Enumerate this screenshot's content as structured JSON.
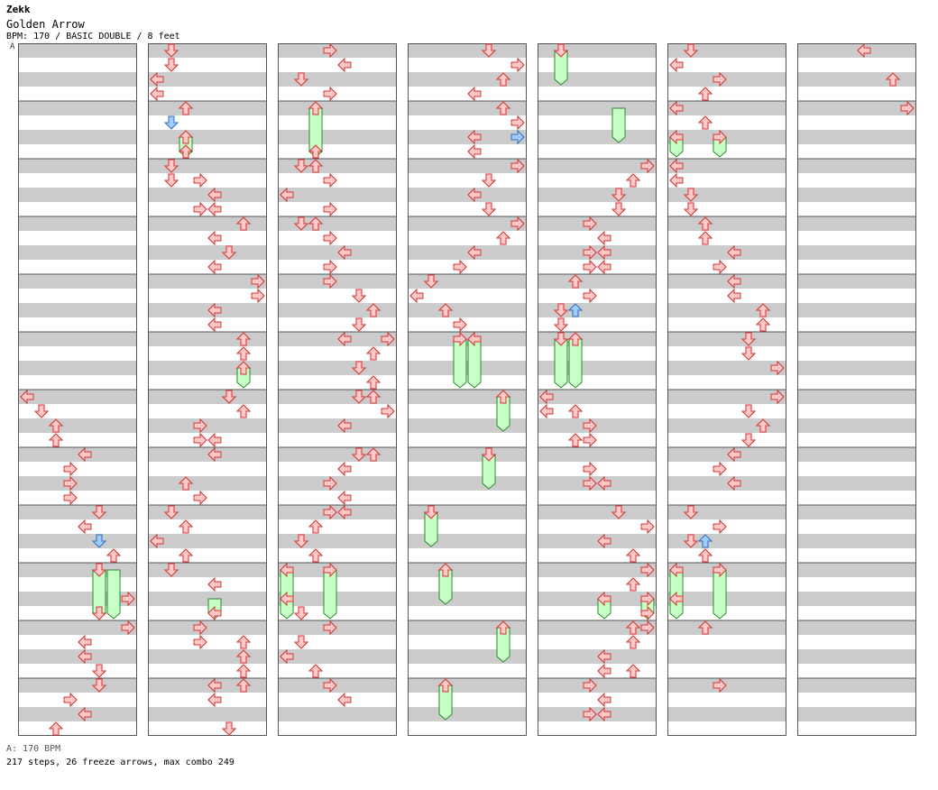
{
  "song": {
    "artist": "Zekk",
    "title": "Golden Arrow",
    "info": "BPM: 170 / BASIC DOUBLE / 8 feet"
  },
  "marker": "A",
  "legend": "A: 170 BPM",
  "stats": "217 steps, 26 freeze arrows, max combo 249",
  "colors": {
    "stripe": "#cbcbcb",
    "border": "#555555",
    "arrow_fill": "#ffc8c8",
    "arrow_stroke": "#d43030",
    "blue_fill": "#9ccbff",
    "blue_stroke": "#2f6fc0",
    "freeze_fill": "#c8ffc8",
    "freeze_stroke": "#2a8a2a"
  },
  "chart_data": {
    "type": "table",
    "beats_per_measure": 4,
    "measures_per_column": 12,
    "lane_directions": [
      "left",
      "down",
      "up",
      "right",
      "left",
      "down",
      "up",
      "right"
    ],
    "columns": [
      {
        "notes": [
          [
            24,
            0
          ],
          [
            25,
            1
          ],
          [
            26,
            2
          ],
          [
            27,
            2
          ],
          [
            28,
            4
          ],
          [
            29,
            3
          ],
          [
            30,
            3
          ],
          [
            31,
            3
          ],
          [
            32,
            5
          ],
          [
            33,
            4
          ],
          [
            34,
            5,
            "b"
          ],
          [
            35,
            6
          ],
          [
            36,
            5
          ],
          [
            38,
            7
          ],
          [
            39,
            5
          ],
          [
            40,
            7
          ],
          [
            41,
            4
          ],
          [
            42,
            4
          ],
          [
            43,
            5
          ],
          [
            44,
            5
          ],
          [
            45,
            3
          ],
          [
            46,
            4
          ],
          [
            47,
            2
          ]
        ],
        "freezes": [
          [
            36,
            5,
            39
          ],
          [
            36,
            6,
            39
          ]
        ]
      },
      {
        "notes": [
          [
            0,
            1
          ],
          [
            1,
            1
          ],
          [
            2,
            0
          ],
          [
            3,
            0
          ],
          [
            4,
            2
          ],
          [
            5,
            1,
            "b"
          ],
          [
            6,
            2
          ],
          [
            7,
            2
          ],
          [
            8,
            1
          ],
          [
            9,
            1
          ],
          [
            9,
            3
          ],
          [
            10,
            4
          ],
          [
            11,
            4
          ],
          [
            11,
            3
          ],
          [
            12,
            6
          ],
          [
            13,
            4
          ],
          [
            14,
            5
          ],
          [
            15,
            4
          ],
          [
            16,
            7
          ],
          [
            17,
            7
          ],
          [
            18,
            4
          ],
          [
            19,
            4
          ],
          [
            20,
            6
          ],
          [
            21,
            6
          ],
          [
            22,
            6
          ],
          [
            24,
            5
          ],
          [
            24,
            5
          ],
          [
            25,
            6
          ],
          [
            26,
            3
          ],
          [
            27,
            3
          ],
          [
            27,
            4
          ],
          [
            28,
            4
          ],
          [
            30,
            2
          ],
          [
            31,
            3
          ],
          [
            32,
            1
          ],
          [
            33,
            2
          ],
          [
            34,
            0
          ],
          [
            35,
            2
          ],
          [
            36,
            1
          ],
          [
            37,
            4
          ],
          [
            39,
            4
          ],
          [
            40,
            3
          ],
          [
            41,
            3
          ],
          [
            41,
            6
          ],
          [
            42,
            6
          ],
          [
            43,
            6
          ],
          [
            44,
            4
          ],
          [
            44,
            6
          ],
          [
            45,
            4
          ],
          [
            47,
            5
          ]
        ],
        "freezes": [
          [
            6,
            2,
            7
          ],
          [
            22,
            6,
            23
          ],
          [
            38,
            4,
            39
          ]
        ]
      },
      {
        "notes": [
          [
            0,
            3
          ],
          [
            1,
            4
          ],
          [
            2,
            1
          ],
          [
            3,
            3
          ],
          [
            4,
            2
          ],
          [
            7,
            2
          ],
          [
            8,
            1
          ],
          [
            8,
            2
          ],
          [
            9,
            3
          ],
          [
            10,
            0
          ],
          [
            11,
            3
          ],
          [
            12,
            1
          ],
          [
            12,
            2
          ],
          [
            13,
            3
          ],
          [
            14,
            4
          ],
          [
            15,
            3
          ],
          [
            16,
            3
          ],
          [
            17,
            5
          ],
          [
            18,
            6
          ],
          [
            19,
            5
          ],
          [
            20,
            4
          ],
          [
            20,
            7
          ],
          [
            21,
            6
          ],
          [
            22,
            5
          ],
          [
            23,
            6
          ],
          [
            24,
            5
          ],
          [
            24,
            6
          ],
          [
            25,
            7
          ],
          [
            26,
            4
          ],
          [
            28,
            5
          ],
          [
            28,
            6
          ],
          [
            29,
            4
          ],
          [
            30,
            3
          ],
          [
            31,
            4
          ],
          [
            32,
            4
          ],
          [
            32,
            3
          ],
          [
            33,
            2
          ],
          [
            34,
            1
          ],
          [
            35,
            2
          ],
          [
            36,
            0
          ],
          [
            36,
            3
          ],
          [
            38,
            0
          ],
          [
            39,
            1
          ],
          [
            40,
            3
          ],
          [
            41,
            1
          ],
          [
            42,
            0
          ],
          [
            43,
            2
          ],
          [
            44,
            3
          ],
          [
            45,
            4
          ]
        ],
        "freezes": [
          [
            4,
            2,
            7
          ],
          [
            36,
            0,
            39
          ],
          [
            36,
            3,
            39
          ]
        ]
      },
      {
        "notes": [
          [
            0,
            5
          ],
          [
            1,
            7
          ],
          [
            2,
            6
          ],
          [
            3,
            4
          ],
          [
            4,
            6
          ],
          [
            5,
            7
          ],
          [
            6,
            4
          ],
          [
            6,
            7,
            "b"
          ],
          [
            7,
            4
          ],
          [
            8,
            7
          ],
          [
            9,
            5
          ],
          [
            10,
            4
          ],
          [
            11,
            5
          ],
          [
            12,
            7
          ],
          [
            13,
            6
          ],
          [
            14,
            4
          ],
          [
            15,
            3
          ],
          [
            16,
            1
          ],
          [
            17,
            0
          ],
          [
            18,
            2
          ],
          [
            19,
            3
          ],
          [
            20,
            3
          ],
          [
            20,
            4
          ],
          [
            24,
            6
          ],
          [
            28,
            5
          ],
          [
            32,
            1
          ],
          [
            36,
            2
          ],
          [
            40,
            6
          ],
          [
            44,
            2
          ]
        ],
        "freezes": [
          [
            20,
            3,
            23
          ],
          [
            20,
            4,
            23
          ],
          [
            24,
            6,
            26
          ],
          [
            28,
            5,
            30
          ],
          [
            32,
            1,
            34
          ],
          [
            36,
            2,
            38
          ],
          [
            40,
            6,
            42
          ],
          [
            44,
            2,
            46
          ]
        ]
      },
      {
        "notes": [
          [
            0,
            1
          ],
          [
            8,
            7
          ],
          [
            9,
            6
          ],
          [
            10,
            5
          ],
          [
            11,
            5
          ],
          [
            12,
            3
          ],
          [
            13,
            4
          ],
          [
            14,
            3
          ],
          [
            14,
            4
          ],
          [
            15,
            3
          ],
          [
            15,
            4
          ],
          [
            16,
            2
          ],
          [
            17,
            3
          ],
          [
            18,
            1
          ],
          [
            18,
            2,
            "b"
          ],
          [
            19,
            1
          ],
          [
            20,
            1
          ],
          [
            20,
            2
          ],
          [
            24,
            0
          ],
          [
            25,
            0
          ],
          [
            25,
            2
          ],
          [
            26,
            3
          ],
          [
            27,
            2
          ],
          [
            27,
            3
          ],
          [
            29,
            3
          ],
          [
            30,
            3
          ],
          [
            30,
            4
          ],
          [
            32,
            5
          ],
          [
            33,
            7
          ],
          [
            34,
            4
          ],
          [
            35,
            6
          ],
          [
            36,
            7
          ],
          [
            37,
            6
          ],
          [
            38,
            4
          ],
          [
            38,
            7
          ],
          [
            39,
            7
          ],
          [
            40,
            6
          ],
          [
            40,
            7
          ],
          [
            41,
            6
          ],
          [
            42,
            4
          ],
          [
            43,
            4
          ],
          [
            43,
            6
          ],
          [
            44,
            3
          ],
          [
            45,
            4
          ],
          [
            46,
            3
          ],
          [
            46,
            4
          ]
        ],
        "freezes": [
          [
            0,
            1,
            2
          ],
          [
            4,
            5,
            6
          ],
          [
            20,
            1,
            23
          ],
          [
            20,
            2,
            23
          ],
          [
            38,
            4,
            39
          ],
          [
            38,
            7,
            39
          ]
        ]
      },
      {
        "notes": [
          [
            0,
            1
          ],
          [
            1,
            0
          ],
          [
            2,
            3
          ],
          [
            3,
            2
          ],
          [
            4,
            0
          ],
          [
            5,
            2
          ],
          [
            6,
            0
          ],
          [
            6,
            3
          ],
          [
            8,
            0
          ],
          [
            9,
            0
          ],
          [
            10,
            1
          ],
          [
            11,
            1
          ],
          [
            12,
            2
          ],
          [
            13,
            2
          ],
          [
            14,
            4
          ],
          [
            15,
            3
          ],
          [
            16,
            4
          ],
          [
            17,
            4
          ],
          [
            18,
            6
          ],
          [
            19,
            6
          ],
          [
            20,
            5
          ],
          [
            21,
            5
          ],
          [
            22,
            7
          ],
          [
            24,
            7
          ],
          [
            25,
            5
          ],
          [
            26,
            6
          ],
          [
            27,
            5
          ],
          [
            28,
            4
          ],
          [
            29,
            3
          ],
          [
            30,
            4
          ],
          [
            32,
            1
          ],
          [
            33,
            3
          ],
          [
            34,
            1
          ],
          [
            34,
            2,
            "b"
          ],
          [
            35,
            2
          ],
          [
            36,
            0
          ],
          [
            36,
            3
          ],
          [
            38,
            0
          ],
          [
            40,
            2
          ],
          [
            44,
            3
          ]
        ],
        "freezes": [
          [
            6,
            0,
            7
          ],
          [
            6,
            3,
            7
          ],
          [
            36,
            0,
            39
          ],
          [
            36,
            3,
            39
          ]
        ]
      },
      {
        "notes": [
          [
            0,
            4
          ],
          [
            2,
            6
          ],
          [
            4,
            7
          ]
        ],
        "freezes": []
      }
    ]
  }
}
